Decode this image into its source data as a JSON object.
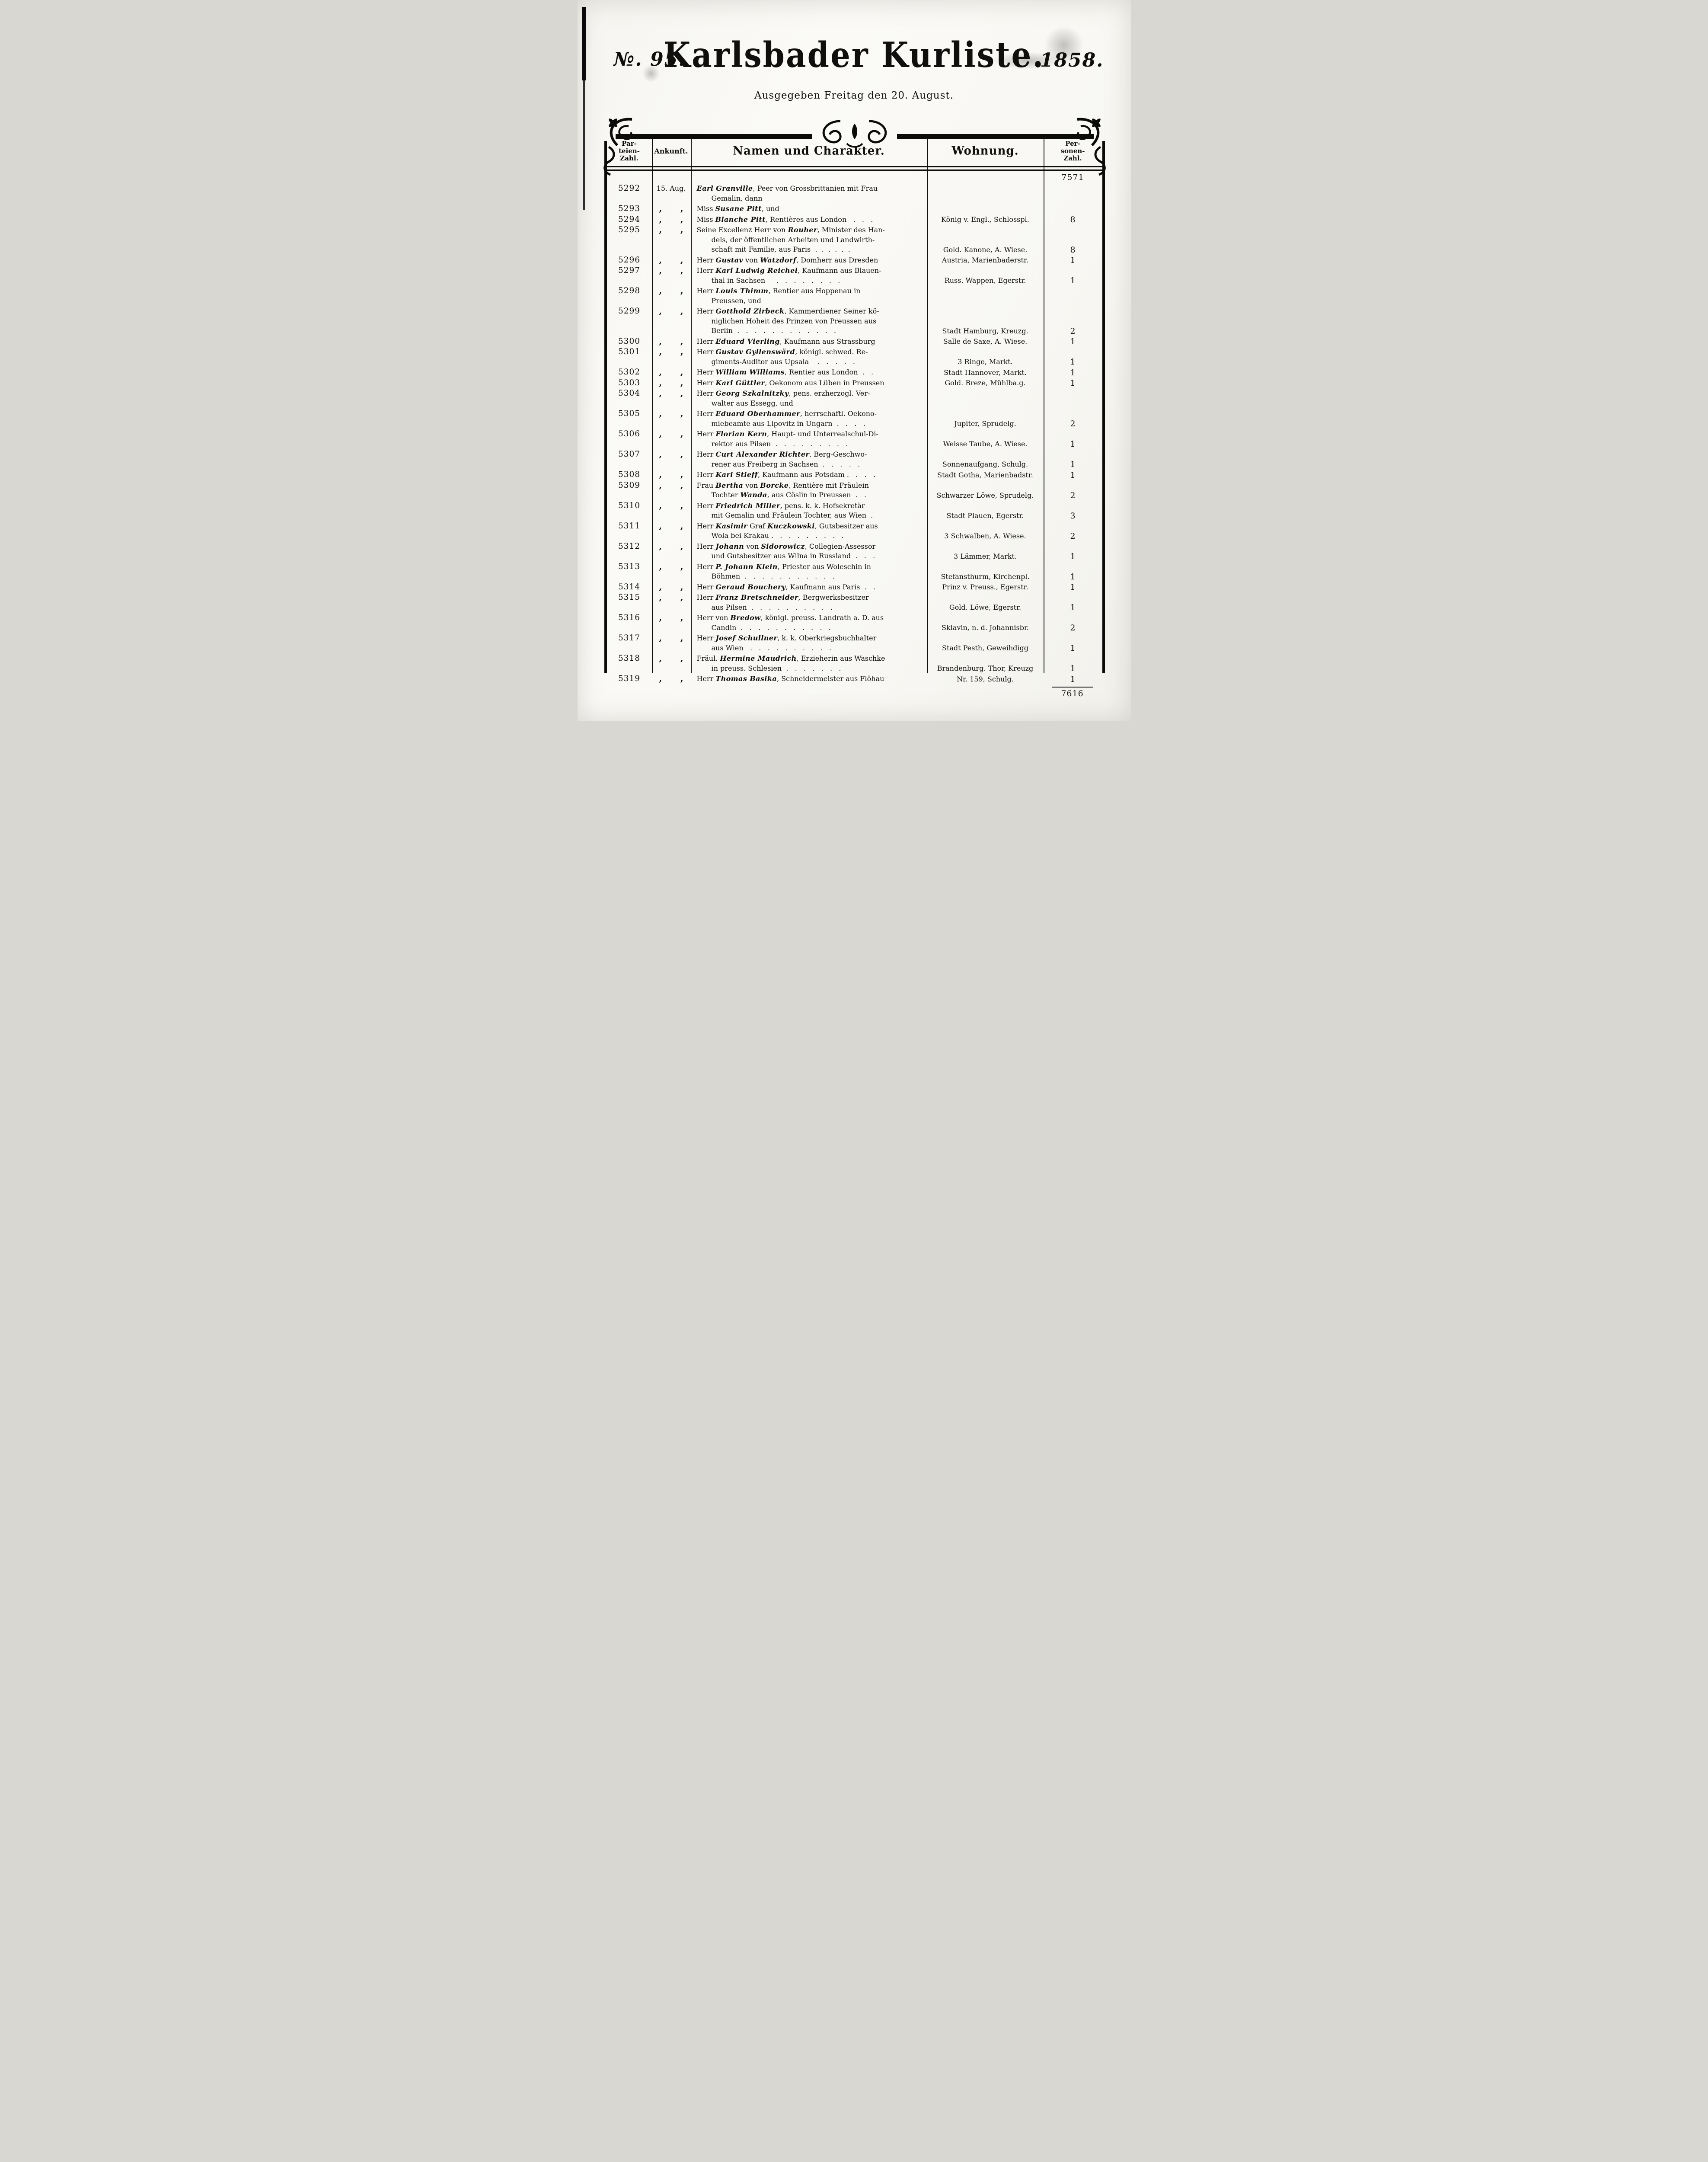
{
  "masthead": {
    "issue_no": "№. 95.",
    "title": "Karlsbader Kurliste.",
    "year": "1858.",
    "subtitle": "Ausgegeben Freitag den 20. August."
  },
  "table": {
    "headers": {
      "parteien": [
        "Par-",
        "teien-",
        "Zahl."
      ],
      "ankunft": "Ankunft.",
      "namen": "Namen und Charakter.",
      "wohnung": "Wohnung.",
      "personen": [
        "Per-",
        "sonen-",
        "Zahl."
      ]
    },
    "carry_forward": "7571",
    "total": "7616",
    "ditto_mark": ",",
    "rows": [
      {
        "nr": "5292",
        "ankunft": "15. Aug.",
        "lines": [
          [
            [
              "Earl Granville",
              1
            ],
            [
              ", Peer von Grossbrittanien mit Frau",
              0
            ]
          ],
          [
            [
              "Gemalin, dann",
              0
            ]
          ]
        ],
        "wohnung": "",
        "personen": ""
      },
      {
        "nr": "5293",
        "ankunft": "",
        "lines": [
          [
            [
              "Miss ",
              0
            ],
            [
              "Susane Pitt",
              1
            ],
            [
              ", und",
              0
            ]
          ]
        ],
        "wohnung": "",
        "personen": ""
      },
      {
        "nr": "5294",
        "ankunft": "",
        "lines": [
          [
            [
              "Miss ",
              0
            ],
            [
              "Blanche Pitt",
              1
            ],
            [
              ", Rentières aus London   .   .   .",
              0
            ]
          ]
        ],
        "wohnung": "König v. Engl., Schlosspl.",
        "personen": "8"
      },
      {
        "nr": "5295",
        "ankunft": "",
        "lines": [
          [
            [
              "Seine Excellenz Herr von ",
              0
            ],
            [
              "Rouher",
              1
            ],
            [
              ", Minister des Han-",
              0
            ]
          ],
          [
            [
              "dels, der öffentlichen Arbeiten und Landwirth-",
              0
            ]
          ],
          [
            [
              "schaft mit Familie, aus Paris  .  .  .  .  .  .",
              0
            ]
          ]
        ],
        "wohnung": "Gold. Kanone, A. Wiese.",
        "personen": "8"
      },
      {
        "nr": "5296",
        "ankunft": "",
        "lines": [
          [
            [
              "Herr ",
              0
            ],
            [
              "Gustav",
              1
            ],
            [
              " von ",
              0
            ],
            [
              "Watzdorf",
              1
            ],
            [
              ", Domherr aus Dresden",
              0
            ]
          ]
        ],
        "wohnung": "Austria, Marienbaderstr.",
        "personen": "1"
      },
      {
        "nr": "5297",
        "ankunft": "",
        "lines": [
          [
            [
              "Herr ",
              0
            ],
            [
              "Karl Ludwig Reichel",
              1
            ],
            [
              ", Kaufmann aus Blauen-",
              0
            ]
          ],
          [
            [
              "thal in Sachsen     .   .   .   .   .   .   .   .",
              0
            ]
          ]
        ],
        "wohnung": "Russ. Wappen, Egerstr.",
        "personen": "1"
      },
      {
        "nr": "5298",
        "ankunft": "",
        "lines": [
          [
            [
              "Herr ",
              0
            ],
            [
              "Louis Thimm",
              1
            ],
            [
              ", Rentier aus Hoppenau in",
              0
            ]
          ],
          [
            [
              "Preussen, und",
              0
            ]
          ]
        ],
        "wohnung": "",
        "personen": ""
      },
      {
        "nr": "5299",
        "ankunft": "",
        "lines": [
          [
            [
              "Herr ",
              0
            ],
            [
              "Gotthold Zirbeck",
              1
            ],
            [
              ", Kammerdiener Seiner kö-",
              0
            ]
          ],
          [
            [
              "niglichen Hoheit des Prinzen von Preussen aus",
              0
            ]
          ],
          [
            [
              "Berlin  .   .   .   .   .   .   .   .   .   .   .   .",
              0
            ]
          ]
        ],
        "wohnung": "Stadt Hamburg, Kreuzg.",
        "personen": "2"
      },
      {
        "nr": "5300",
        "ankunft": "",
        "lines": [
          [
            [
              "Herr ",
              0
            ],
            [
              "Eduard Vierling",
              1
            ],
            [
              ", Kaufmann aus Strassburg",
              0
            ]
          ]
        ],
        "wohnung": "Salle de Saxe, A. Wiese.",
        "personen": "1"
      },
      {
        "nr": "5301",
        "ankunft": "",
        "lines": [
          [
            [
              "Herr ",
              0
            ],
            [
              "Gustav Gyllenswärd",
              1
            ],
            [
              ", königl. schwed. Re-",
              0
            ]
          ],
          [
            [
              "giments-Auditor aus Upsala    .   .   .   .   .",
              0
            ]
          ]
        ],
        "wohnung": "3 Ringe, Markt.",
        "personen": "1"
      },
      {
        "nr": "5302",
        "ankunft": "",
        "lines": [
          [
            [
              "Herr ",
              0
            ],
            [
              "William Williams",
              1
            ],
            [
              ", Rentier aus London  .   .",
              0
            ]
          ]
        ],
        "wohnung": "Stadt Hannover, Markt.",
        "personen": "1"
      },
      {
        "nr": "5303",
        "ankunft": "",
        "lines": [
          [
            [
              "Herr ",
              0
            ],
            [
              "Karl Güttler",
              1
            ],
            [
              ", Oekonom aus Lüben in Preussen",
              0
            ]
          ]
        ],
        "wohnung": "Gold. Breze, Mühlba.g.",
        "personen": "1"
      },
      {
        "nr": "5304",
        "ankunft": "",
        "lines": [
          [
            [
              "Herr ",
              0
            ],
            [
              "Georg Szkalnitzky",
              1
            ],
            [
              ", pens. erzherzogl. Ver-",
              0
            ]
          ],
          [
            [
              "walter aus Essegg, und",
              0
            ]
          ]
        ],
        "wohnung": "",
        "personen": ""
      },
      {
        "nr": "5305",
        "ankunft": "",
        "lines": [
          [
            [
              "Herr ",
              0
            ],
            [
              "Eduard Oberhammer",
              1
            ],
            [
              ", herrschaftl. Oekono-",
              0
            ]
          ],
          [
            [
              "miebeamte aus Lipovitz in Ungarn  .   .   .   .",
              0
            ]
          ]
        ],
        "wohnung": "Jupiter, Sprudelg.",
        "personen": "2"
      },
      {
        "nr": "5306",
        "ankunft": "",
        "lines": [
          [
            [
              "Herr ",
              0
            ],
            [
              "Florian Kern",
              1
            ],
            [
              ", Haupt- und Unterrealschul-Di-",
              0
            ]
          ],
          [
            [
              "rektor aus Pilsen  .   .   .   .   .   .   .   .   .",
              0
            ]
          ]
        ],
        "wohnung": "Weisse Taube, A. Wiese.",
        "personen": "1"
      },
      {
        "nr": "5307",
        "ankunft": "",
        "lines": [
          [
            [
              "Herr ",
              0
            ],
            [
              "Curt Alexander Richter",
              1
            ],
            [
              ", Berg-Geschwo-",
              0
            ]
          ],
          [
            [
              "rener aus Freiberg in Sachsen  .   .   .   .   .",
              0
            ]
          ]
        ],
        "wohnung": "Sonnenaufgang, Schulg.",
        "personen": "1"
      },
      {
        "nr": "5308",
        "ankunft": "",
        "lines": [
          [
            [
              "Herr ",
              0
            ],
            [
              "Karl Stieff",
              1
            ],
            [
              ", Kaufmann aus Potsdam .   .   .   .",
              0
            ]
          ]
        ],
        "wohnung": "Stadt Gotha, Marienbadstr.",
        "personen": "1"
      },
      {
        "nr": "5309",
        "ankunft": "",
        "lines": [
          [
            [
              "Frau ",
              0
            ],
            [
              "Bertha",
              1
            ],
            [
              " von ",
              0
            ],
            [
              "Borcke",
              1
            ],
            [
              ", Rentière mit Fräulein",
              0
            ]
          ],
          [
            [
              "Tochter ",
              0
            ],
            [
              "Wanda",
              1
            ],
            [
              ", aus Cöslin in Preussen  .   .",
              0
            ]
          ]
        ],
        "wohnung": "Schwarzer Löwe, Sprudelg.",
        "personen": "2"
      },
      {
        "nr": "5310",
        "ankunft": "",
        "lines": [
          [
            [
              "Herr ",
              0
            ],
            [
              "Friedrich Miller",
              1
            ],
            [
              ", pens. k. k. Hofsekretär",
              0
            ]
          ],
          [
            [
              "mit Gemalin und Fräulein Tochter, aus Wien  .",
              0
            ]
          ]
        ],
        "wohnung": "Stadt Plauen, Egerstr.",
        "personen": "3"
      },
      {
        "nr": "5311",
        "ankunft": "",
        "lines": [
          [
            [
              "Herr ",
              0
            ],
            [
              "Kasimir",
              1
            ],
            [
              " Graf ",
              0
            ],
            [
              "Kuczkowski",
              1
            ],
            [
              ", Gutsbesitzer aus",
              0
            ]
          ],
          [
            [
              "Wola bei Krakau .   .   .   .   .   .   .   .   .",
              0
            ]
          ]
        ],
        "wohnung": "3 Schwalben, A. Wiese.",
        "personen": "2"
      },
      {
        "nr": "5312",
        "ankunft": "",
        "lines": [
          [
            [
              "Herr ",
              0
            ],
            [
              "Johann",
              1
            ],
            [
              " von ",
              0
            ],
            [
              "Sidorowicz",
              1
            ],
            [
              ", Collegien-Assessor",
              0
            ]
          ],
          [
            [
              "und Gutsbesitzer aus Wilna in Russland  .   .   .",
              0
            ]
          ]
        ],
        "wohnung": "3 Lämmer, Markt.",
        "personen": "1"
      },
      {
        "nr": "5313",
        "ankunft": "",
        "lines": [
          [
            [
              "Herr ",
              0
            ],
            [
              "P. Johann Klein",
              1
            ],
            [
              ", Priester aus Woleschin in",
              0
            ]
          ],
          [
            [
              "Böhmen  .   .   .   .   .   .   .   .   .   .   .",
              0
            ]
          ]
        ],
        "wohnung": "Stefansthurm, Kirchenpl.",
        "personen": "1"
      },
      {
        "nr": "5314",
        "ankunft": "",
        "lines": [
          [
            [
              "Herr ",
              0
            ],
            [
              "Geraud Bouchery",
              1
            ],
            [
              ", Kaufmann aus Paris  .   .",
              0
            ]
          ]
        ],
        "wohnung": "Prinz v. Preuss., Egerstr.",
        "personen": "1"
      },
      {
        "nr": "5315",
        "ankunft": "",
        "lines": [
          [
            [
              "Herr ",
              0
            ],
            [
              "Franz Bretschneider",
              1
            ],
            [
              ", Bergwerksbesitzer",
              0
            ]
          ],
          [
            [
              "aus Pilsen  .   .   .   .   .   .   .   .   .   .",
              0
            ]
          ]
        ],
        "wohnung": "Gold. Löwe, Egerstr.",
        "personen": "1"
      },
      {
        "nr": "5316",
        "ankunft": "",
        "lines": [
          [
            [
              "Herr von ",
              0
            ],
            [
              "Bredow",
              1
            ],
            [
              ", königl. preuss. Landrath a. D. aus",
              0
            ]
          ],
          [
            [
              "Candin  .   .   .   .   .   .   .   .   .   .   .",
              0
            ]
          ]
        ],
        "wohnung": "Sklavin, n. d. Johannisbr.",
        "personen": "2"
      },
      {
        "nr": "5317",
        "ankunft": "",
        "lines": [
          [
            [
              "Herr ",
              0
            ],
            [
              "Josef Schullner",
              1
            ],
            [
              ", k. k. Oberkriegsbuchhalter",
              0
            ]
          ],
          [
            [
              "aus Wien   .   .   .   .   .   .   .   .   .   .",
              0
            ]
          ]
        ],
        "wohnung": "Stadt Pesth, Geweihdigg",
        "personen": "1"
      },
      {
        "nr": "5318",
        "ankunft": "",
        "lines": [
          [
            [
              "Fräul. ",
              0
            ],
            [
              "Hermine Maudrich",
              1
            ],
            [
              ", Erzieherin aus Waschke",
              0
            ]
          ],
          [
            [
              "in preuss. Schlesien  .   .   .   .   .   .   .",
              0
            ]
          ]
        ],
        "wohnung": "Brandenburg. Thor, Kreuzg",
        "personen": "1"
      },
      {
        "nr": "5319",
        "ankunft": "",
        "lines": [
          [
            [
              "Herr ",
              0
            ],
            [
              "Thomas Basika",
              1
            ],
            [
              ", Schneidermeister aus Flöhau",
              0
            ]
          ]
        ],
        "wohnung": "Nr. 159, Schulg.",
        "personen": "1"
      }
    ]
  }
}
